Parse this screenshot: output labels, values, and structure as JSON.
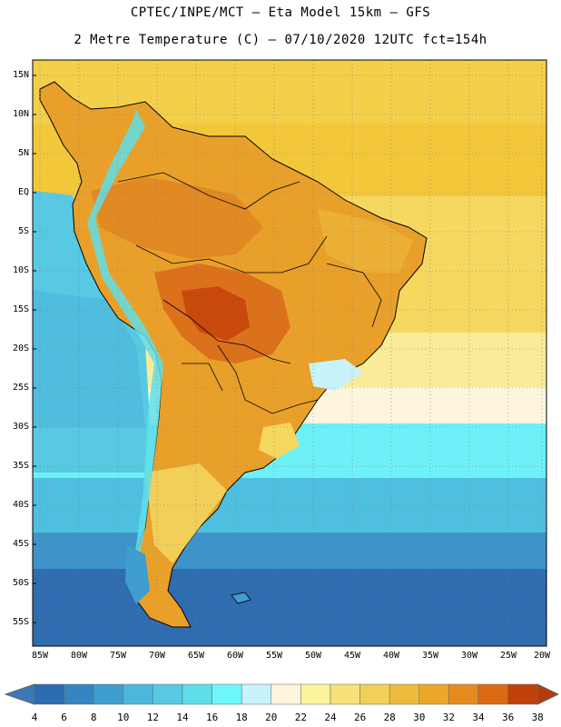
{
  "header": {
    "line1": "CPTEC/INPE/MCT –  Eta Model 15km – GFS",
    "line2": "2 Metre Temperature (C) – 07/10/2020 12UTC fct=154h"
  },
  "map": {
    "lat_labels": [
      "15N",
      "10N",
      "5N",
      "EQ",
      "5S",
      "10S",
      "15S",
      "20S",
      "25S",
      "30S",
      "35S",
      "40S",
      "45S",
      "50S",
      "55S"
    ],
    "lon_labels": [
      "85W",
      "80W",
      "75W",
      "70W",
      "65W",
      "60W",
      "55W",
      "50W",
      "45W",
      "40W",
      "35W",
      "30W",
      "25W",
      "20W"
    ],
    "ocean_color": "#f2c83a",
    "land_color": "#e9a02a"
  },
  "colorbar": {
    "labels": [
      "4",
      "6",
      "8",
      "10",
      "12",
      "14",
      "16",
      "18",
      "20",
      "22",
      "24",
      "26",
      "28",
      "30",
      "32",
      "34",
      "36",
      "38"
    ],
    "colors": [
      "#2c6cb0",
      "#3585c0",
      "#3f9ecf",
      "#4db6dc",
      "#57c9e3",
      "#5fdeea",
      "#6ef7fb",
      "#c8f3fb",
      "#fef6dc",
      "#fdf39b",
      "#f7e17a",
      "#f1cf59",
      "#ecbb3c",
      "#eaa72a",
      "#e58a1f",
      "#dc6a14",
      "#c4400a"
    ],
    "end_low": "#3a79b8",
    "end_high": "#b63a0e"
  }
}
